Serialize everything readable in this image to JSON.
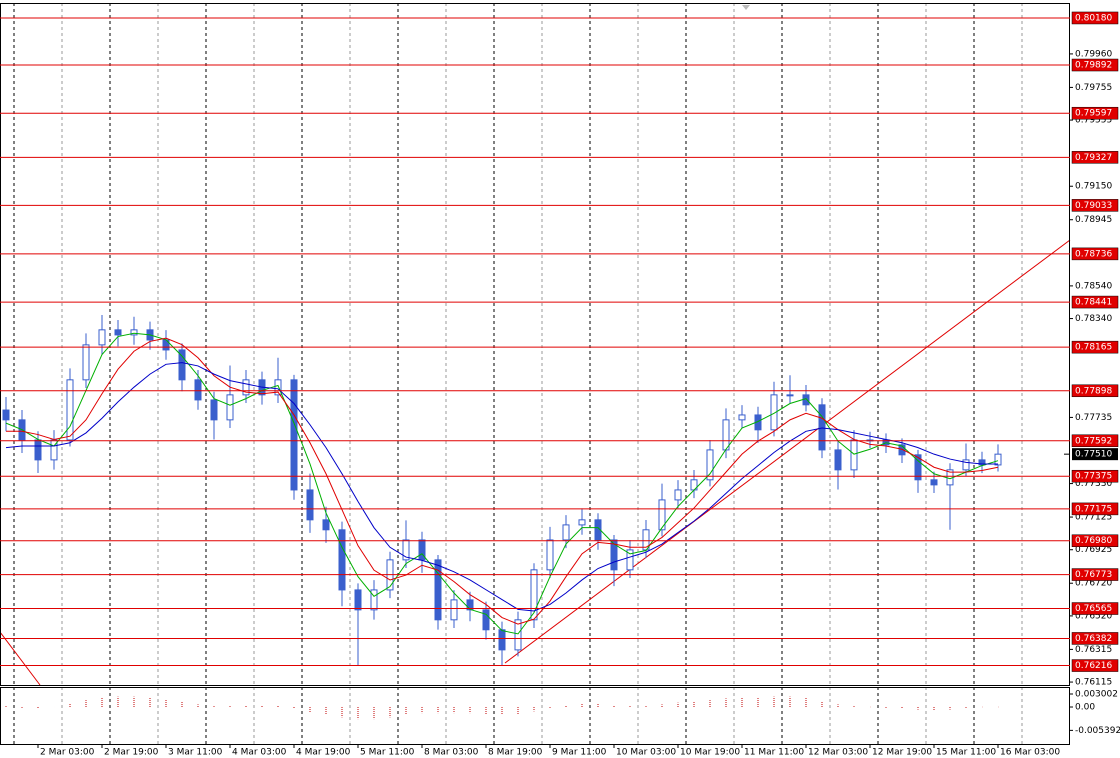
{
  "chart_data": {
    "type": "candlestick",
    "color": "#3a5fcd",
    "categories": [
      null,
      "2 Mar 03:00",
      null,
      null,
      null,
      "2 Mar 19:00",
      null,
      null,
      null,
      "3 Mar 11:00",
      null,
      null,
      null,
      "4 Mar 03:00",
      null,
      null,
      null,
      "4 Mar 19:00",
      null,
      null,
      null,
      "5 Mar 11:00",
      null,
      null,
      null,
      "8 Mar 03:00",
      null,
      null,
      null,
      "8 Mar 19:00",
      null,
      null,
      null,
      "9 Mar 11:00",
      null,
      null,
      null,
      "10 Mar 03:00",
      null,
      null,
      null,
      "10 Mar 19:00",
      null,
      null,
      null,
      "11 Mar 11:00",
      null,
      null,
      null,
      "12 Mar 03:00",
      null,
      null,
      null,
      "12 Mar 19:00",
      null,
      null,
      null,
      "15 Mar 11:00",
      null,
      null,
      null,
      "16 Mar 03:00",
      null
    ],
    "open": [
      0.7778,
      0.7772,
      0.77597,
      0.77475,
      0.77597,
      0.77965,
      0.78179,
      0.78271,
      0.7824,
      0.78271,
      0.78209,
      0.78148,
      0.77965,
      0.77842,
      0.7772,
      0.77873,
      0.77965,
      0.77873,
      0.77965,
      0.77291,
      0.77108,
      0.77047,
      0.76679,
      0.76557,
      0.76679,
      0.76863,
      0.76985,
      0.76863,
      0.76496,
      0.76618,
      0.76557,
      0.76435,
      0.76312,
      0.76496,
      0.76802,
      0.76985,
      0.77077,
      0.77108,
      0.76985,
      0.76802,
      0.76924,
      0.77047,
      0.7723,
      0.77291,
      0.77353,
      0.77536,
      0.7772,
      0.7775,
      0.77659,
      0.77873,
      0.77873,
      0.77812,
      0.77536,
      0.77414,
      0.77597,
      0.77597,
      0.77567,
      0.77506,
      0.77353,
      0.77322,
      0.77414,
      0.77475,
      0.77444
    ],
    "high": [
      0.7786,
      0.7778,
      0.7765,
      0.77657,
      0.78035,
      0.78249,
      0.78362,
      0.78331,
      0.78351,
      0.78321,
      0.78269,
      0.78188,
      0.78025,
      0.77892,
      0.78053,
      0.78025,
      0.78015,
      0.781,
      0.77995,
      0.77391,
      0.77188,
      0.77097,
      0.76719,
      0.76739,
      0.76913,
      0.77105,
      0.77035,
      0.76893,
      0.76678,
      0.76668,
      0.76607,
      0.76485,
      0.76546,
      0.76842,
      0.77065,
      0.77137,
      0.77178,
      0.77148,
      0.77015,
      0.76984,
      0.77107,
      0.7733,
      0.77351,
      0.77413,
      0.77596,
      0.7779,
      0.7781,
      0.778,
      0.77953,
      0.77993,
      0.77933,
      0.77852,
      0.77596,
      0.77657,
      0.77647,
      0.77637,
      0.77607,
      0.77536,
      0.77403,
      0.77454,
      0.77575,
      0.77525,
      0.7757
    ],
    "low": [
      0.7765,
      0.77517,
      0.77395,
      0.77415,
      0.77557,
      0.77915,
      0.78119,
      0.7817,
      0.7818,
      0.78149,
      0.78088,
      0.77895,
      0.77782,
      0.776,
      0.7767,
      0.77823,
      0.77813,
      0.77823,
      0.77231,
      0.77028,
      0.76967,
      0.76579,
      0.76216,
      0.76497,
      0.76629,
      0.76813,
      0.76783,
      0.76436,
      0.76446,
      0.76487,
      0.76375,
      0.76216,
      0.76272,
      0.76446,
      0.76752,
      0.76935,
      0.77017,
      0.76925,
      0.76702,
      0.76752,
      0.76874,
      0.77007,
      0.7718,
      0.77241,
      0.77313,
      0.77486,
      0.7767,
      0.77579,
      0.77619,
      0.77823,
      0.77772,
      0.77486,
      0.77294,
      0.77364,
      0.77547,
      0.77517,
      0.77456,
      0.77273,
      0.77272,
      0.77047,
      0.77374,
      0.77394,
      0.77404
    ],
    "close": [
      0.7772,
      0.77597,
      0.77475,
      0.77597,
      0.77965,
      0.78179,
      0.78271,
      0.7824,
      0.78271,
      0.78209,
      0.78148,
      0.77965,
      0.77842,
      0.7772,
      0.77873,
      0.77965,
      0.77873,
      0.77965,
      0.77291,
      0.77108,
      0.77047,
      0.76679,
      0.76557,
      0.76679,
      0.76863,
      0.76985,
      0.76863,
      0.76496,
      0.76618,
      0.76557,
      0.76435,
      0.76312,
      0.76496,
      0.76802,
      0.76985,
      0.77077,
      0.77108,
      0.76985,
      0.76802,
      0.76924,
      0.77047,
      0.7723,
      0.77291,
      0.77353,
      0.77536,
      0.7772,
      0.7775,
      0.77659,
      0.77873,
      0.77873,
      0.77812,
      0.77536,
      0.77414,
      0.77597,
      0.77597,
      0.77567,
      0.77506,
      0.77353,
      0.77322,
      0.77414,
      0.77475,
      0.77444,
      0.7751
    ],
    "ma": [
      {
        "color": "#00b000",
        "values": [
          0.777,
          0.7766,
          0.776,
          0.7756,
          0.7768,
          0.779,
          0.7812,
          0.7823,
          0.7825,
          0.7824,
          0.7821,
          0.7811,
          0.7799,
          0.7785,
          0.7781,
          0.7785,
          0.779,
          0.7793,
          0.777,
          0.7745,
          0.7715,
          0.7694,
          0.7676,
          0.7664,
          0.767,
          0.7684,
          0.769,
          0.7678,
          0.7666,
          0.7656,
          0.7653,
          0.7643,
          0.7641,
          0.7654,
          0.7676,
          0.7696,
          0.7706,
          0.7706,
          0.7696,
          0.769,
          0.7692,
          0.7706,
          0.7719,
          0.7729,
          0.7739,
          0.7754,
          0.7767,
          0.7771,
          0.7776,
          0.7782,
          0.7785,
          0.7774,
          0.7759,
          0.7751,
          0.7754,
          0.7758,
          0.7756,
          0.7747,
          0.7739,
          0.7736,
          0.774,
          0.7744,
          0.7747
        ]
      },
      {
        "color": "#e00000",
        "values": [
          0.7765,
          0.7765,
          0.7763,
          0.776,
          0.7762,
          0.7772,
          0.7788,
          0.7803,
          0.7814,
          0.782,
          0.7822,
          0.7818,
          0.781,
          0.7799,
          0.7792,
          0.7789,
          0.7788,
          0.7789,
          0.7775,
          0.7758,
          0.7739,
          0.7717,
          0.7695,
          0.768,
          0.7674,
          0.7677,
          0.7683,
          0.768,
          0.7673,
          0.7665,
          0.7659,
          0.7651,
          0.7647,
          0.765,
          0.7661,
          0.7676,
          0.769,
          0.7697,
          0.7696,
          0.7694,
          0.7694,
          0.77,
          0.7709,
          0.7718,
          0.7729,
          0.774,
          0.7751,
          0.7759,
          0.7765,
          0.7772,
          0.7776,
          0.7773,
          0.7766,
          0.776,
          0.7757,
          0.7756,
          0.7754,
          0.7749,
          0.7743,
          0.774,
          0.774,
          0.7741,
          0.7743
        ]
      },
      {
        "color": "#0000c8",
        "values": [
          0.7755,
          0.7756,
          0.7756,
          0.7756,
          0.7758,
          0.7764,
          0.7773,
          0.7783,
          0.7792,
          0.78,
          0.7806,
          0.7807,
          0.7805,
          0.78,
          0.7796,
          0.7794,
          0.7792,
          0.7791,
          0.7782,
          0.7769,
          0.7755,
          0.7739,
          0.7722,
          0.7706,
          0.7694,
          0.7688,
          0.7686,
          0.7683,
          0.7679,
          0.7674,
          0.7668,
          0.7662,
          0.7656,
          0.7655,
          0.7659,
          0.7666,
          0.7674,
          0.7681,
          0.7685,
          0.7688,
          0.7691,
          0.7696,
          0.7703,
          0.771,
          0.7718,
          0.7727,
          0.7736,
          0.7744,
          0.7752,
          0.7759,
          0.7765,
          0.7767,
          0.7766,
          0.7764,
          0.7762,
          0.776,
          0.7758,
          0.7755,
          0.7751,
          0.7748,
          0.7746,
          0.7745,
          0.7745
        ]
      }
    ],
    "ylim": [
      0.76097,
      0.8029
    ],
    "yticks": [
      {
        "value": 0.7996,
        "label": "0.79960"
      },
      {
        "value": 0.79755,
        "label": "0.79755"
      },
      {
        "value": 0.79555,
        "label": "0.79555"
      },
      {
        "value": 0.7915,
        "label": "0.79150"
      },
      {
        "value": 0.78945,
        "label": "0.78945"
      },
      {
        "value": 0.7854,
        "label": "0.78540"
      },
      {
        "value": 0.7834,
        "label": "0.78340"
      },
      {
        "value": 0.77735,
        "label": "0.77735"
      },
      {
        "value": 0.7733,
        "label": "0.77330"
      },
      {
        "value": 0.77125,
        "label": "0.77125"
      },
      {
        "value": 0.76925,
        "label": "0.76925"
      },
      {
        "value": 0.7672,
        "label": "0.76720"
      },
      {
        "value": 0.7652,
        "label": "0.76520"
      },
      {
        "value": 0.76315,
        "label": "0.76315"
      },
      {
        "value": 0.76115,
        "label": "0.76115"
      }
    ],
    "levels_color": "#e00000",
    "levels": [
      {
        "value": 0.8018,
        "label": "0.80180"
      },
      {
        "value": 0.79892,
        "label": "0.79892"
      },
      {
        "value": 0.79597,
        "label": "0.79597"
      },
      {
        "value": 0.79327,
        "label": "0.79327"
      },
      {
        "value": 0.79033,
        "label": "0.79033"
      },
      {
        "value": 0.78736,
        "label": "0.78736"
      },
      {
        "value": 0.78441,
        "label": "0.78441"
      },
      {
        "value": 0.78165,
        "label": "0.78165"
      },
      {
        "value": 0.77898,
        "label": "0.77898"
      },
      {
        "value": 0.77592,
        "label": "0.77592"
      },
      {
        "value": 0.77375,
        "label": "0.77375"
      },
      {
        "value": 0.77175,
        "label": "0.77175"
      },
      {
        "value": 0.7698,
        "label": "0.76980"
      },
      {
        "value": 0.76773,
        "label": "0.76773"
      },
      {
        "value": 0.76565,
        "label": "0.76565"
      },
      {
        "value": 0.76382,
        "label": "0.76382"
      },
      {
        "value": 0.76216,
        "label": "0.76216"
      }
    ],
    "current_price": {
      "value": 0.7751,
      "label": "0.77510"
    },
    "indicator": {
      "color": "#c00000",
      "ylim": [
        -0.00877,
        0.00439
      ],
      "yticks": [
        0.003002,
        {
          "value": 0,
          "label": "0.00"
        },
        -0.005392
      ],
      "values": [
        0.0002,
        -0.0002,
        -0.0004,
        0.0,
        0.0008,
        0.0016,
        0.0022,
        0.0024,
        0.0024,
        0.0022,
        0.0018,
        0.0012,
        0.0006,
        0.0002,
        0.0002,
        0.0004,
        0.0004,
        0.0004,
        -0.0004,
        -0.0012,
        -0.0018,
        -0.0024,
        -0.0028,
        -0.0028,
        -0.0024,
        -0.0018,
        -0.0014,
        -0.0014,
        -0.0014,
        -0.0014,
        -0.0016,
        -0.0018,
        -0.0016,
        -0.001,
        -0.0002,
        0.0004,
        0.0008,
        0.0008,
        0.0004,
        0.0002,
        0.0002,
        0.0006,
        0.001,
        0.0012,
        0.0016,
        0.002,
        0.0022,
        0.0022,
        0.0024,
        0.0024,
        0.0022,
        0.0014,
        0.0006,
        0.0002,
        0.0,
        -0.0002,
        -0.0004,
        -0.0006,
        -0.0008,
        -0.0006,
        -0.0002,
        0.0,
        0.0
      ]
    }
  }
}
